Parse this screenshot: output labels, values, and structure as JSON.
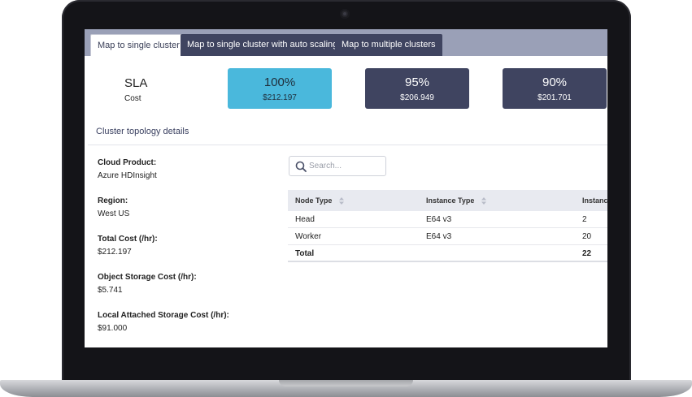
{
  "tabs": [
    {
      "label": "Map to single cluster",
      "active": true
    },
    {
      "label": "Map to single cluster with auto scaling",
      "active": false
    },
    {
      "label": "Map to multiple clusters",
      "active": false
    }
  ],
  "summary": {
    "sla_label": "SLA",
    "cost_label": "Cost"
  },
  "sla_options": [
    {
      "sla": "100%",
      "cost": "$212.197",
      "selected": true
    },
    {
      "sla": "95%",
      "cost": "$206.949",
      "selected": false
    },
    {
      "sla": "90%",
      "cost": "$201.701",
      "selected": false
    }
  ],
  "section": {
    "title": "Cluster topology details"
  },
  "details": [
    {
      "label": "Cloud Product:",
      "value": "Azure HDInsight"
    },
    {
      "label": "Region:",
      "value": "West US"
    },
    {
      "label": "Total Cost (/hr):",
      "value": "$212.197"
    },
    {
      "label": "Object Storage Cost (/hr):",
      "value": "$5.741"
    },
    {
      "label": "Local Attached Storage Cost (/hr):",
      "value": "$91.000"
    }
  ],
  "search": {
    "placeholder": "Search...",
    "value": "",
    "icon": "search-icon"
  },
  "table": {
    "columns": [
      "Node Type",
      "Instance Type",
      "Instanc"
    ],
    "rows": [
      [
        "Head",
        "E64 v3",
        "2"
      ],
      [
        "Worker",
        "E64 v3",
        "20"
      ]
    ],
    "total": [
      "Total",
      "",
      "22"
    ]
  },
  "colors": {
    "selected_card": "#4ab8dc",
    "card": "#3f4460",
    "tabbar": "#9aa0b7"
  }
}
